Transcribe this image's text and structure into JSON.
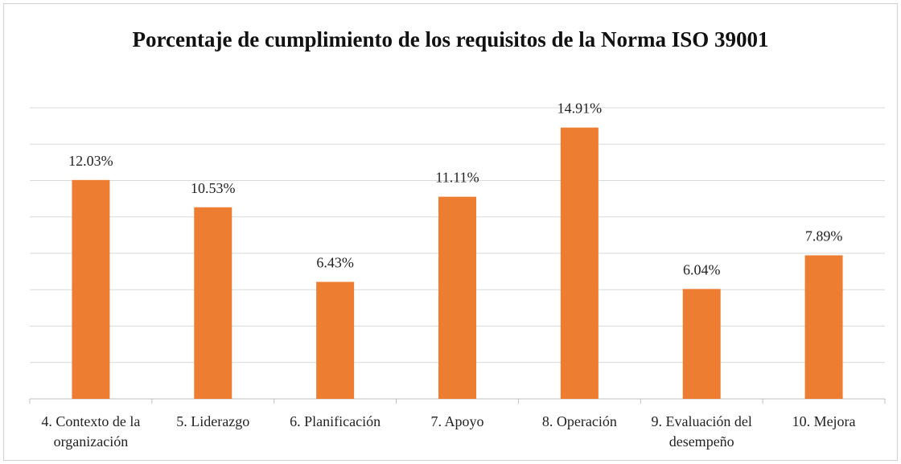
{
  "chart_data": {
    "type": "bar",
    "title": "Porcentaje de cumplimiento de los requisitos de la Norma ISO 39001",
    "categories": [
      "4. Contexto de la organización",
      "5. Liderazgo",
      "6. Planificación",
      "7. Apoyo",
      "8. Operación",
      "9. Evaluación del desempeño",
      "10. Mejora"
    ],
    "values": [
      12.03,
      10.53,
      6.43,
      11.11,
      14.91,
      6.04,
      7.89
    ],
    "value_labels": [
      "12.03%",
      "10.53%",
      "6.43%",
      "11.11%",
      "14.91%",
      "6.04%",
      "7.89%"
    ],
    "color": "#ed7d31",
    "ylim": [
      0,
      16
    ],
    "yticks": [
      0,
      2,
      4,
      6,
      8,
      10,
      12,
      14,
      16
    ],
    "grid": true
  }
}
